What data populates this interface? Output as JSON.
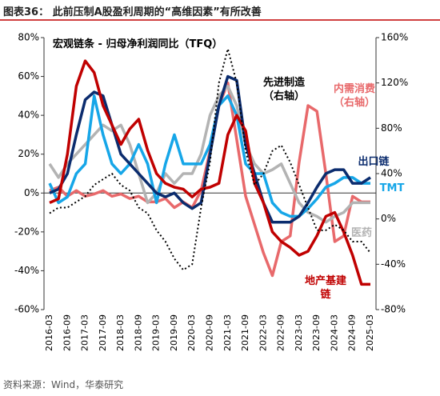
{
  "chart_data": {
    "type": "line",
    "title": "图表36： 此前压制A股盈利周期的“高维因素”有所改善",
    "subtitle": "宏观链条 - 归母净利润同比（TFQ）",
    "source": "资料来源：Wind，华泰研究",
    "categories": [
      "2016-03",
      null,
      "2016-09",
      null,
      "2017-03",
      null,
      "2017-09",
      null,
      "2018-03",
      null,
      "2018-09",
      null,
      "2019-03",
      null,
      "2019-09",
      null,
      "2020-03",
      null,
      "2020-09",
      null,
      "2021-03",
      null,
      "2021-09",
      null,
      "2022-03",
      null,
      "2022-09",
      null,
      "2023-03",
      null,
      "2023-09",
      null,
      "2024-03",
      null,
      "2024-09",
      null,
      "2025-03"
    ],
    "ylim": [
      -60,
      80
    ],
    "yticks": [
      {
        "value": -60,
        "label": "-60%"
      },
      {
        "value": -40,
        "label": "-40%"
      },
      {
        "value": -20,
        "label": "-20%"
      },
      {
        "value": 0,
        "label": "0%"
      },
      {
        "value": 20,
        "label": "20%"
      },
      {
        "value": 40,
        "label": "40%"
      },
      {
        "value": 60,
        "label": "60%"
      },
      {
        "value": 80,
        "label": "80%"
      }
    ],
    "y2lim": [
      -80,
      160
    ],
    "y2ticks": [
      {
        "value": -80,
        "label": "-80%"
      },
      {
        "value": -40,
        "label": "-40%"
      },
      {
        "value": 0,
        "label": "0%"
      },
      {
        "value": 40,
        "label": "40%"
      },
      {
        "value": 80,
        "label": "80%"
      },
      {
        "value": 120,
        "label": "120%"
      },
      {
        "value": 160,
        "label": "160%"
      }
    ],
    "series": [
      {
        "name": "内需消费（右轴）",
        "color": "#e8696b",
        "axis": "y2",
        "values": [
          25,
          28,
          20,
          25,
          20,
          22,
          25,
          20,
          22,
          18,
          20,
          15,
          15,
          18,
          10,
          15,
          10,
          25,
          60,
          100,
          120,
          70,
          20,
          -5,
          -30,
          -50,
          -20,
          -15,
          50,
          100,
          95,
          40,
          -20,
          -15,
          20,
          15,
          15
        ]
      },
      {
        "name": "医药",
        "color": "#b3b3b3",
        "values": [
          15,
          8,
          15,
          20,
          25,
          30,
          35,
          32,
          35,
          25,
          10,
          -5,
          0,
          10,
          5,
          10,
          10,
          20,
          40,
          50,
          55,
          45,
          25,
          15,
          10,
          12,
          15,
          5,
          -5,
          -10,
          -12,
          -15,
          -12,
          -10,
          -5,
          -5,
          -5
        ]
      },
      {
        "name": "TMT",
        "color": "#16a6e8",
        "values": [
          5,
          -5,
          -2,
          10,
          15,
          50,
          30,
          15,
          10,
          15,
          25,
          15,
          -5,
          15,
          30,
          15,
          15,
          15,
          25,
          45,
          50,
          40,
          15,
          10,
          10,
          -5,
          -10,
          -12,
          -12,
          -8,
          -3,
          3,
          5,
          8,
          8,
          5,
          5
        ]
      },
      {
        "name": "出口链",
        "color": "#0b2c6e",
        "values": [
          0,
          2,
          10,
          30,
          48,
          52,
          50,
          35,
          20,
          15,
          10,
          5,
          0,
          -2,
          0,
          -5,
          -8,
          -5,
          20,
          45,
          60,
          58,
          25,
          10,
          -5,
          -15,
          -15,
          -15,
          -12,
          -5,
          3,
          10,
          12,
          12,
          5,
          5,
          8
        ]
      },
      {
        "name": "地产基建链",
        "color": "#c00000",
        "values": [
          -5,
          -3,
          20,
          55,
          68,
          62,
          45,
          35,
          25,
          33,
          38,
          22,
          10,
          5,
          3,
          2,
          -2,
          2,
          3,
          5,
          30,
          40,
          32,
          5,
          -5,
          -20,
          -25,
          -28,
          -32,
          -30,
          -22,
          -12,
          -10,
          -20,
          -32,
          -47,
          -47
        ]
      },
      {
        "name": "先进制造（右轴）",
        "color": "#000000",
        "axis": "y2",
        "dash": true,
        "values": [
          5,
          10,
          10,
          15,
          20,
          30,
          35,
          40,
          30,
          25,
          10,
          5,
          -10,
          -20,
          -35,
          -45,
          -40,
          10,
          50,
          120,
          150,
          120,
          60,
          30,
          40,
          60,
          65,
          50,
          30,
          10,
          -10,
          -10,
          -5,
          -10,
          -20,
          -20,
          -30
        ]
      }
    ]
  }
}
